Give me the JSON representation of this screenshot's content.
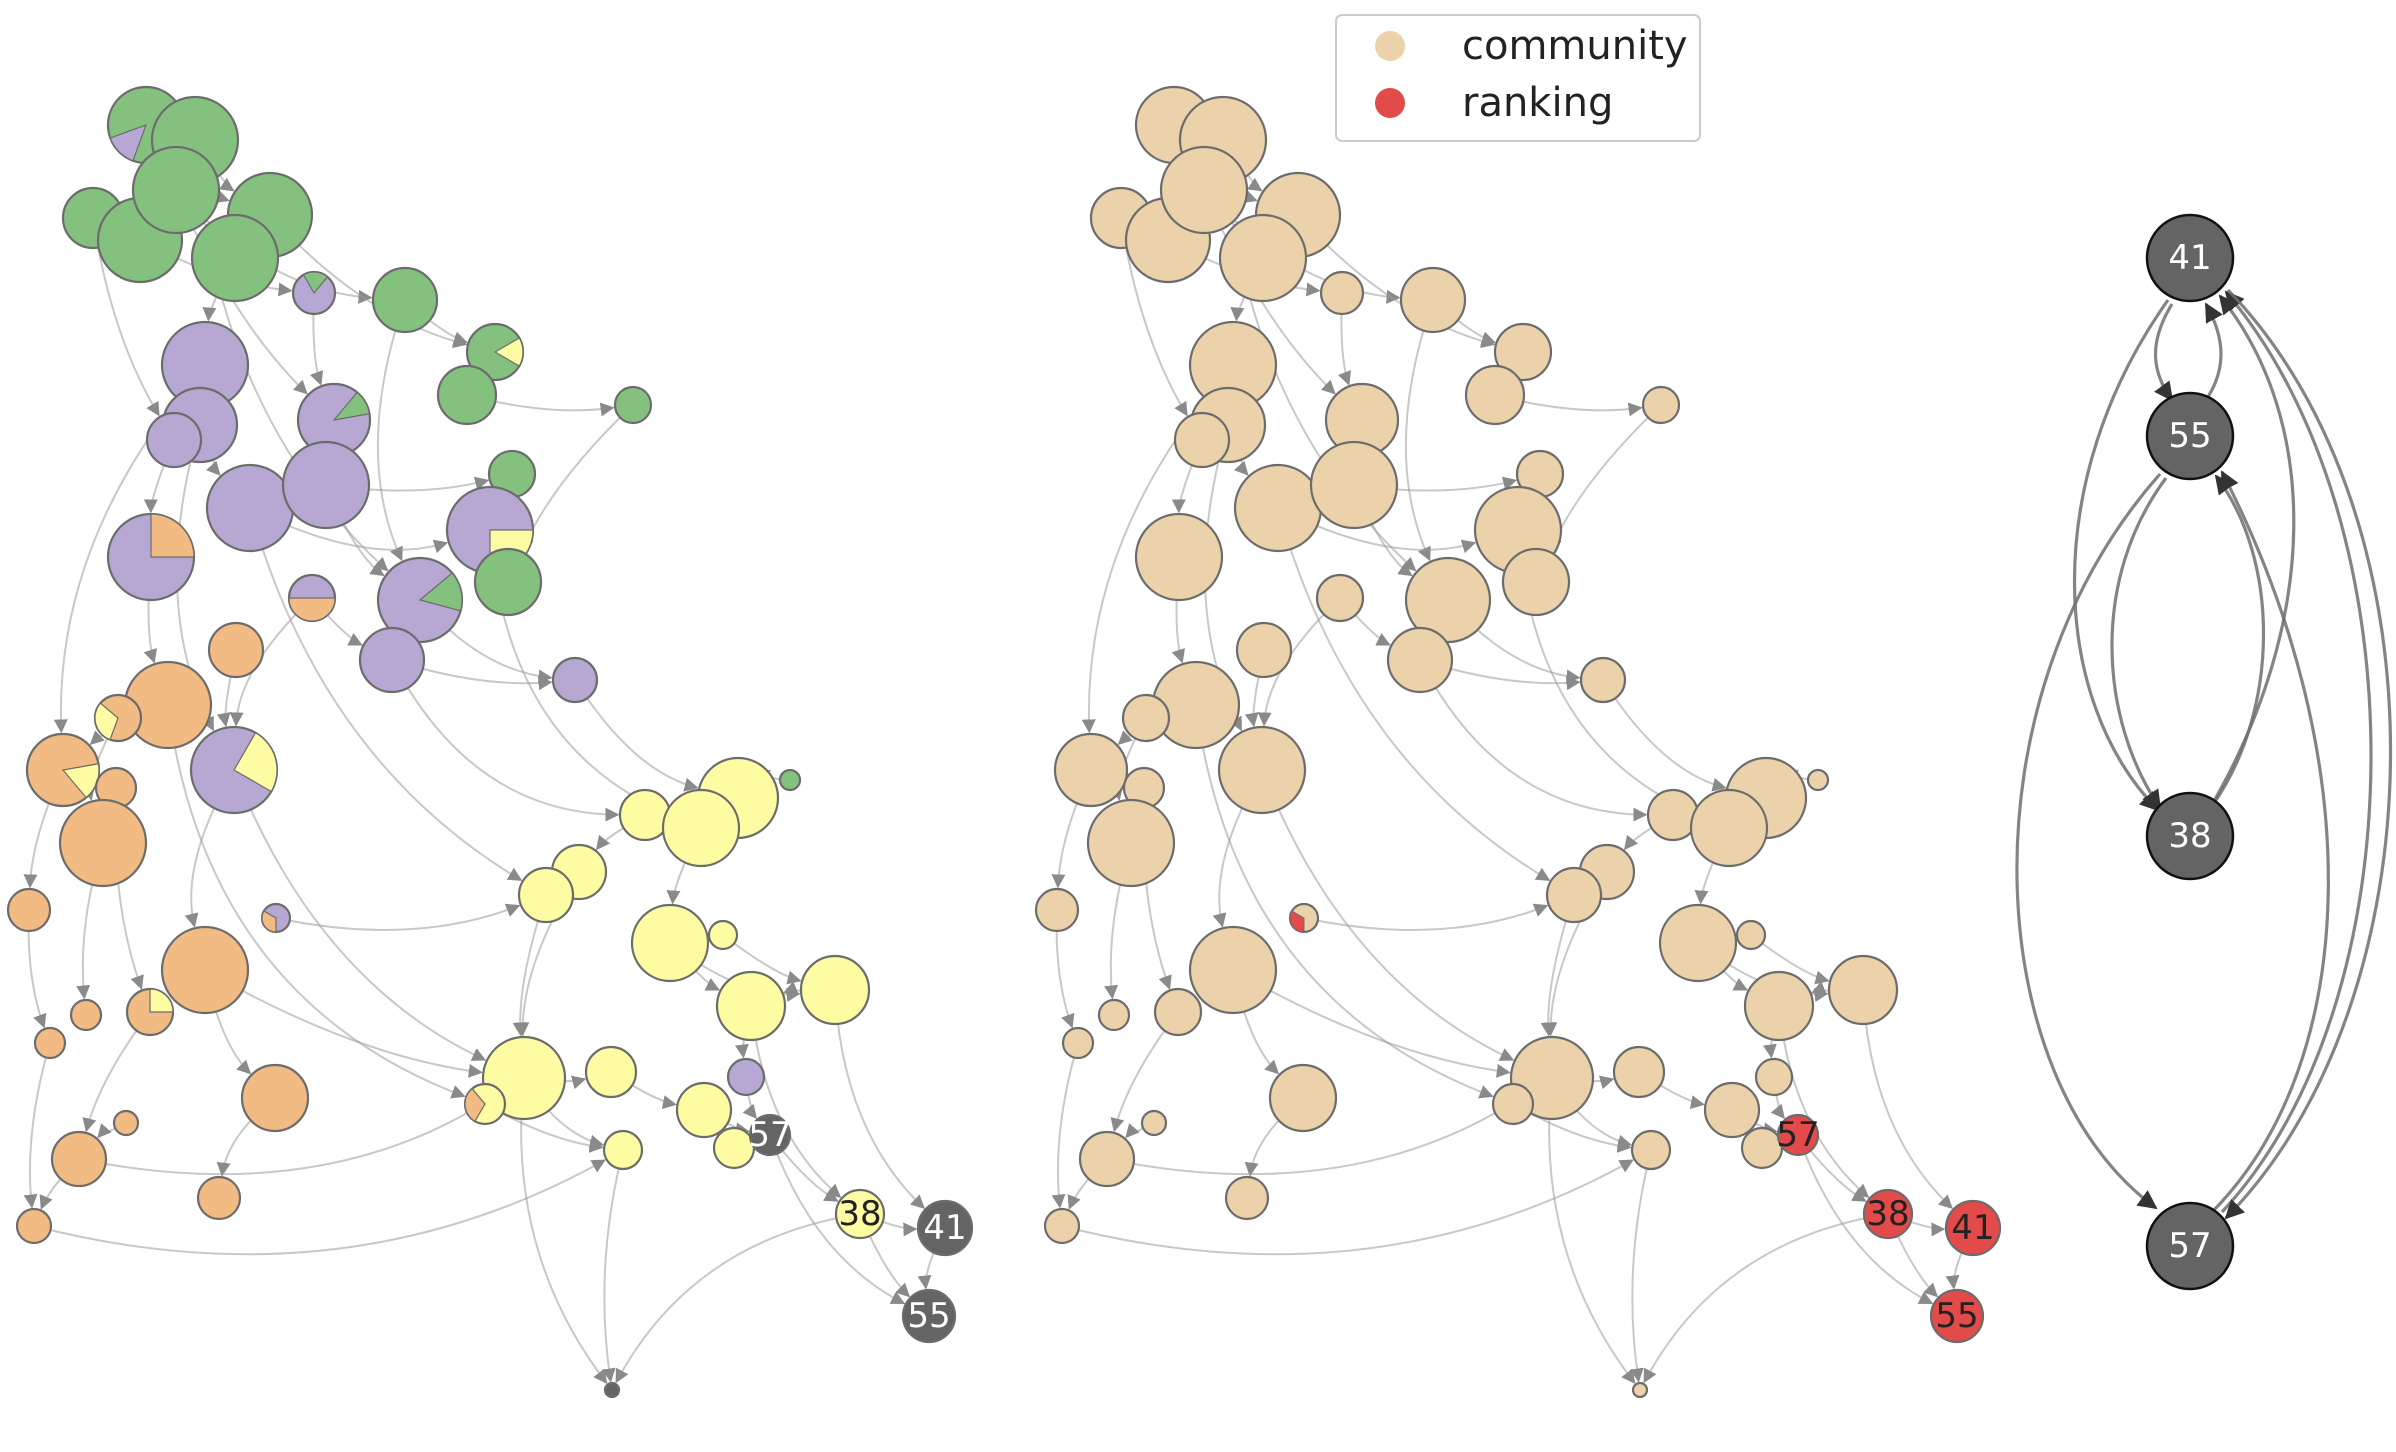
{
  "legend": {
    "items": [
      {
        "label": "community",
        "color": "#ecd2aa"
      },
      {
        "label": "ranking",
        "color": "#e34a4a"
      }
    ]
  },
  "colors": {
    "green": "#85c17e",
    "purple": "#b6a8d2",
    "orange": "#f2bb84",
    "yellow": "#fdfca2",
    "gray": "#646464",
    "community": "#ecd2aa",
    "ranking": "#e34a4a"
  },
  "node_labels": {
    "n38": "38",
    "n41": "41",
    "n55": "55",
    "n57": "57"
  }
}
